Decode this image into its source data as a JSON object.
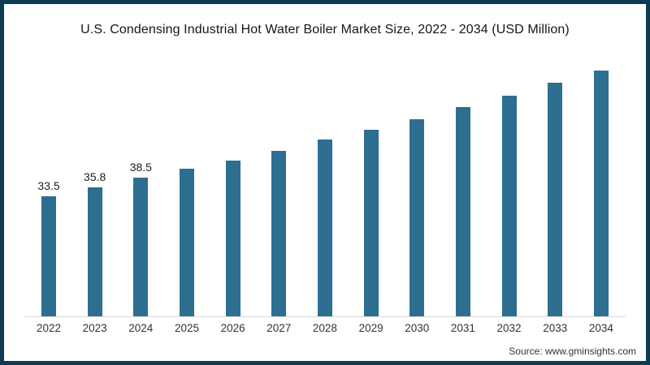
{
  "title": "U.S. Condensing Industrial Hot Water Boiler Market Size, 2022 - 2034 (USD Million)",
  "source": "Source: www.gminsights.com",
  "colors": {
    "bar": "#2d6e91",
    "frame_border": "#0d3b52",
    "axis_line": "#d9d9d9",
    "title_text": "#161616",
    "label_text": "#1d1d1d",
    "tick_text": "#333333",
    "source_text": "#333333"
  },
  "chart_data": {
    "type": "bar",
    "title": "U.S. Condensing Industrial Hot Water Boiler Market Size, 2022 - 2034 (USD Million)",
    "unit": "USD Million",
    "categories": [
      "2022",
      "2023",
      "2024",
      "2025",
      "2026",
      "2027",
      "2028",
      "2029",
      "2030",
      "2031",
      "2032",
      "2033",
      "2034"
    ],
    "values": [
      33.5,
      35.8,
      38.5,
      41.0,
      43.3,
      46.1,
      49.2,
      52.0,
      54.9,
      58.2,
      61.4,
      65.1,
      68.4
    ],
    "value_labels": [
      "33.5",
      "35.8",
      "38.5",
      "",
      "",
      "",
      "",
      "",
      "",
      "",
      "",
      "",
      ""
    ],
    "xlabel": "",
    "ylabel": "",
    "ylim": [
      0,
      75
    ],
    "grid": false,
    "legend": "none"
  }
}
